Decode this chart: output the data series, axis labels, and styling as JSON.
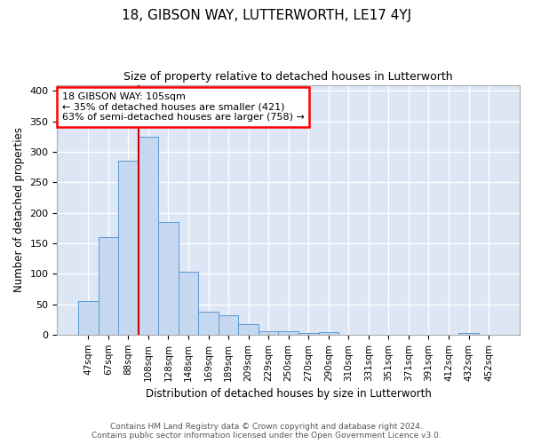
{
  "title": "18, GIBSON WAY, LUTTERWORTH, LE17 4YJ",
  "subtitle": "Size of property relative to detached houses in Lutterworth",
  "xlabel": "Distribution of detached houses by size in Lutterworth",
  "ylabel": "Number of detached properties",
  "footer_line1": "Contains HM Land Registry data © Crown copyright and database right 2024.",
  "footer_line2": "Contains public sector information licensed under the Open Government Licence v3.0.",
  "categories": [
    "47sqm",
    "67sqm",
    "88sqm",
    "108sqm",
    "128sqm",
    "148sqm",
    "169sqm",
    "189sqm",
    "209sqm",
    "229sqm",
    "250sqm",
    "270sqm",
    "290sqm",
    "310sqm",
    "331sqm",
    "351sqm",
    "371sqm",
    "391sqm",
    "412sqm",
    "432sqm",
    "452sqm"
  ],
  "values": [
    55,
    160,
    285,
    325,
    185,
    103,
    38,
    32,
    17,
    6,
    5,
    3,
    4,
    0,
    0,
    0,
    0,
    0,
    0,
    3,
    0
  ],
  "bar_color": "#c5d8ef",
  "bar_edge_color": "#5b9bd5",
  "fig_background_color": "#ffffff",
  "plot_background_color": "#dce6f5",
  "grid_color": "#ffffff",
  "vline_color": "#cc0000",
  "annotation_box_text": "18 GIBSON WAY: 105sqm\n← 35% of detached houses are smaller (421)\n63% of semi-detached houses are larger (758) →",
  "ylim": [
    0,
    410
  ],
  "yticks": [
    0,
    50,
    100,
    150,
    200,
    250,
    300,
    350,
    400
  ]
}
